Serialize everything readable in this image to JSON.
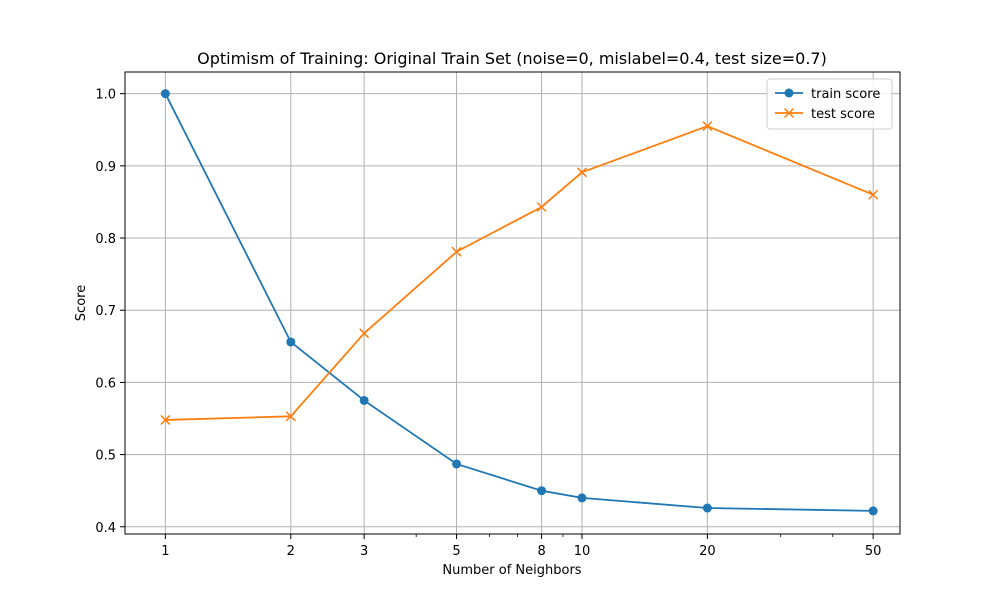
{
  "chart_data": {
    "type": "line",
    "title": "Optimism of Training: Original Train Set (noise=0, mislabel=0.4, test size=0.7)",
    "xlabel": "Number of Neighbors",
    "ylabel": "Score",
    "x_scale": "log",
    "x": [
      1,
      2,
      3,
      5,
      8,
      10,
      20,
      50
    ],
    "x_tick_labels": [
      "1",
      "2",
      "3",
      "5",
      "8",
      "10",
      "20",
      "50"
    ],
    "xlim": [
      0.8,
      58
    ],
    "ylim": [
      0.39,
      1.03
    ],
    "y_ticks": [
      0.4,
      0.5,
      0.6,
      0.7,
      0.8,
      0.9,
      1.0
    ],
    "y_tick_labels": [
      "0.4",
      "0.5",
      "0.6",
      "0.7",
      "0.8",
      "0.9",
      "1.0"
    ],
    "grid": true,
    "legend_position": "upper right",
    "series": [
      {
        "name": "train score",
        "values": [
          1.0,
          0.656,
          0.575,
          0.487,
          0.45,
          0.44,
          0.426,
          0.422
        ],
        "color": "#1f77b4",
        "marker": "circle"
      },
      {
        "name": "test score",
        "values": [
          0.548,
          0.553,
          0.668,
          0.781,
          0.843,
          0.891,
          0.955,
          0.86
        ],
        "color": "#ff7f0e",
        "marker": "x"
      }
    ]
  }
}
